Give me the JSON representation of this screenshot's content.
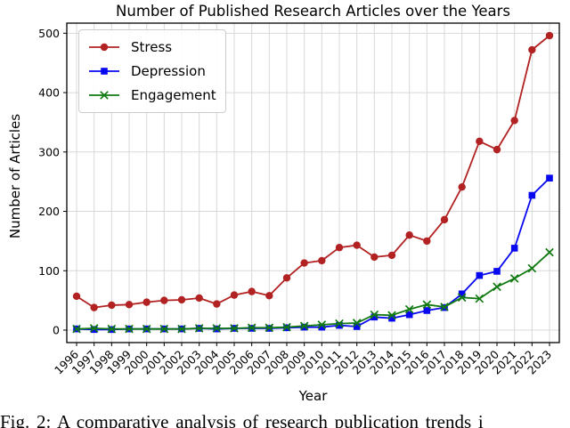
{
  "figure": {
    "title": "Number of Published Research Articles over the Years",
    "caption": "Fig. 2: A comparative analysis of research publication trends i"
  },
  "chart_data": {
    "type": "line",
    "title": "Number of Published Research Articles over the Years",
    "xlabel": "Year",
    "ylabel": "Number of Articles",
    "x": [
      1996,
      1997,
      1998,
      1999,
      2000,
      2001,
      2002,
      2003,
      2004,
      2005,
      2006,
      2007,
      2008,
      2009,
      2010,
      2011,
      2012,
      2013,
      2014,
      2015,
      2016,
      2017,
      2018,
      2019,
      2020,
      2021,
      2022,
      2023
    ],
    "series": [
      {
        "name": "Stress",
        "color": "#b22222",
        "marker": "circle",
        "values": [
          57,
          38,
          42,
          43,
          47,
          50,
          51,
          54,
          44,
          59,
          65,
          58,
          88,
          113,
          117,
          139,
          143,
          123,
          126,
          160,
          150,
          186,
          241,
          318,
          304,
          353,
          472,
          496
        ]
      },
      {
        "name": "Depression",
        "color": "#0808f0",
        "marker": "square",
        "values": [
          2,
          1,
          1,
          2,
          2,
          2,
          2,
          3,
          2,
          3,
          3,
          3,
          4,
          5,
          5,
          8,
          6,
          22,
          20,
          26,
          33,
          38,
          61,
          92,
          99,
          138,
          227,
          256
        ]
      },
      {
        "name": "Engagement",
        "color": "#117a11",
        "marker": "x",
        "values": [
          2,
          3,
          2,
          2,
          2,
          2,
          2,
          3,
          3,
          3,
          4,
          4,
          5,
          7,
          9,
          11,
          12,
          26,
          25,
          35,
          43,
          39,
          55,
          53,
          73,
          87,
          104,
          131
        ]
      }
    ],
    "yticks": [
      0,
      100,
      200,
      300,
      400,
      500
    ],
    "ylim": [
      -21,
      517
    ],
    "grid": true,
    "legend_position": "upper left",
    "grid_color": "#d8d8d8",
    "axis_color": "#000000"
  }
}
